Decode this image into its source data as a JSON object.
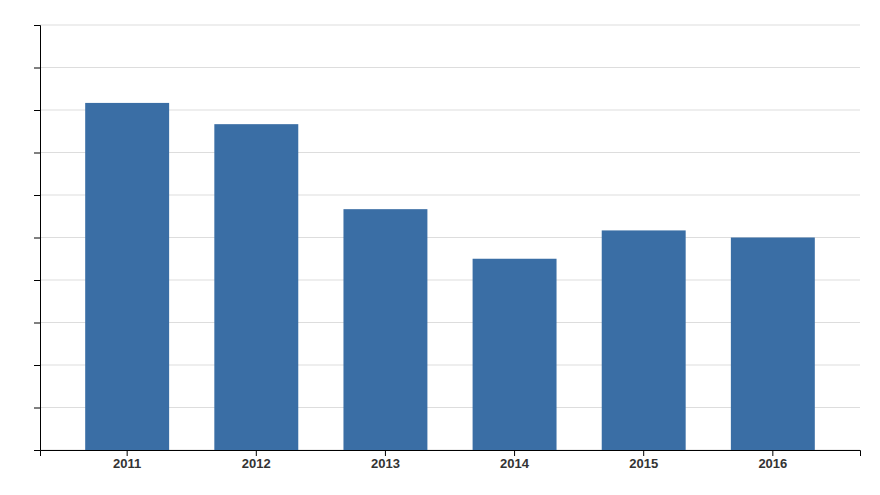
{
  "chart_data": {
    "type": "bar",
    "categories": [
      "2011",
      "2012",
      "2013",
      "2014",
      "2015",
      "2016"
    ],
    "values": [
      49,
      46,
      34,
      27,
      31,
      30
    ],
    "color": "#3A6EA5",
    "ylim": [
      0,
      60
    ],
    "yticks": [
      0,
      6,
      12,
      18,
      24,
      30,
      36,
      42,
      48,
      54,
      60
    ],
    "grid": true,
    "tick_labels": "x"
  }
}
